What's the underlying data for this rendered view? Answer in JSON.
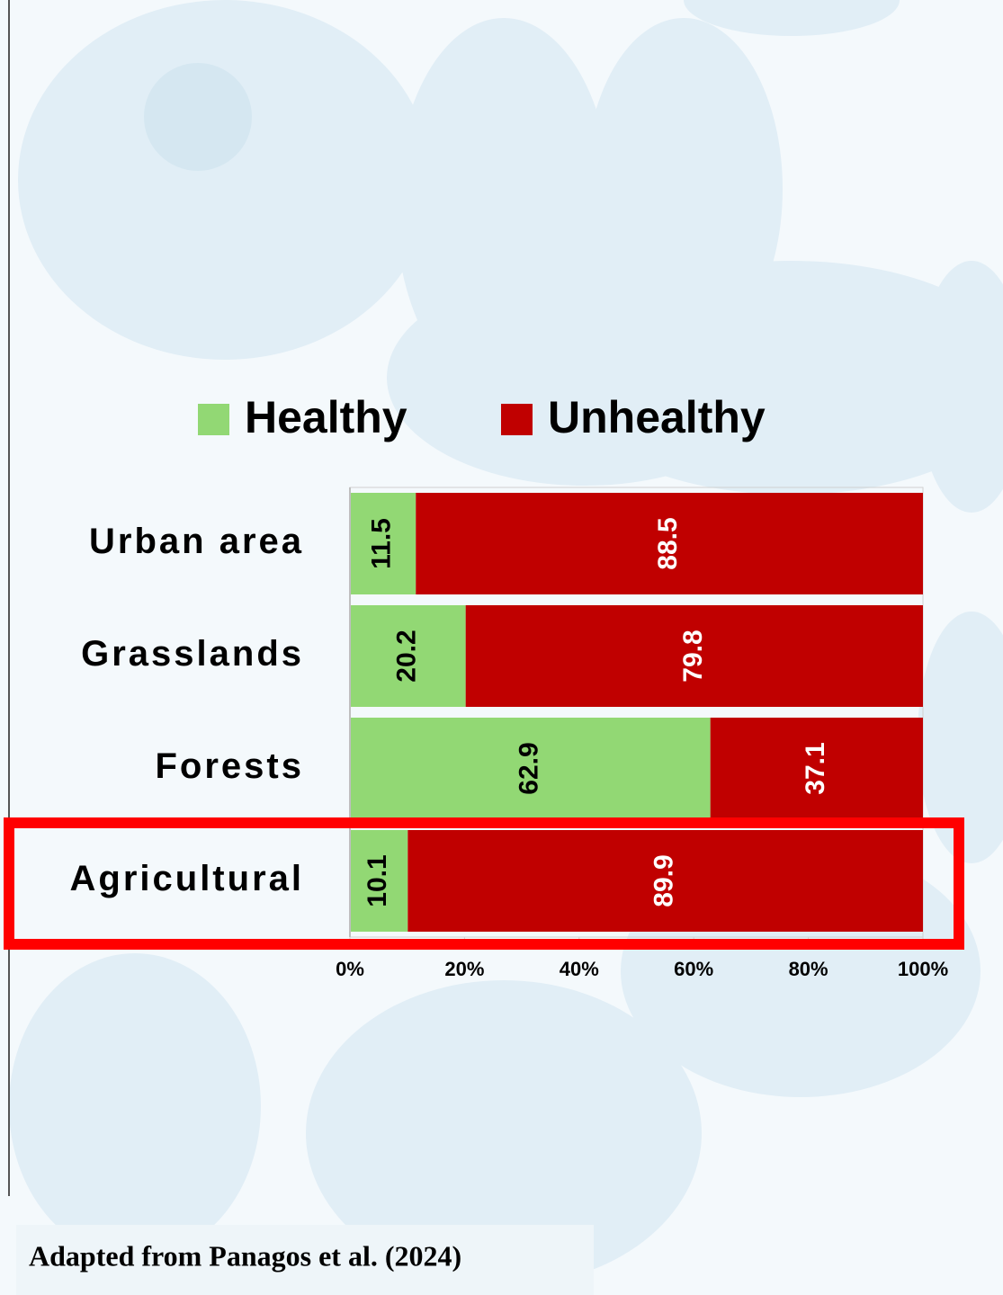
{
  "chart_data": {
    "type": "stacked-bar-horizontal",
    "categories": [
      "Urban area",
      "Grasslands",
      "Forests",
      "Agricultural"
    ],
    "series": [
      {
        "name": "Healthy",
        "color": "#92d874",
        "label_color": "#000000",
        "values": [
          11.5,
          20.2,
          62.9,
          10.1
        ]
      },
      {
        "name": "Unhealthy",
        "color": "#c00000",
        "label_color": "#ffffff",
        "values": [
          88.5,
          79.8,
          37.1,
          89.9
        ]
      }
    ],
    "xlim": [
      0,
      100
    ],
    "xticks": [
      {
        "value": 0,
        "label": "0%"
      },
      {
        "value": 20,
        "label": "20%"
      },
      {
        "value": 40,
        "label": "40%"
      },
      {
        "value": 60,
        "label": "60%"
      },
      {
        "value": 80,
        "label": "80%"
      },
      {
        "value": 100,
        "label": "100%"
      }
    ],
    "grid": false,
    "note": "Adapted from Panagos et al. (2024)"
  }
}
